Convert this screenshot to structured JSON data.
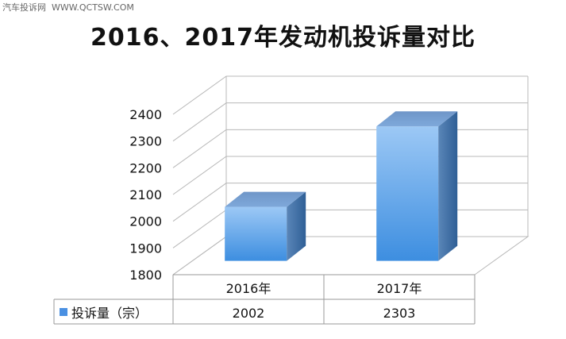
{
  "watermark": "汽车投诉网  WWW.QCTSW.COM",
  "chart_data": {
    "type": "bar",
    "title": "2016、2017年发动机投诉量对比",
    "categories": [
      "2016年",
      "2017年"
    ],
    "series": [
      {
        "name": "投诉量（宗）",
        "values": [
          2002,
          2303
        ],
        "color": "#4a90e2"
      }
    ],
    "yticks": [
      1800,
      1900,
      2000,
      2100,
      2200,
      2300,
      2400
    ],
    "ylim": [
      1800,
      2400
    ],
    "grid": true,
    "legend": "data-table",
    "data_table": true
  }
}
